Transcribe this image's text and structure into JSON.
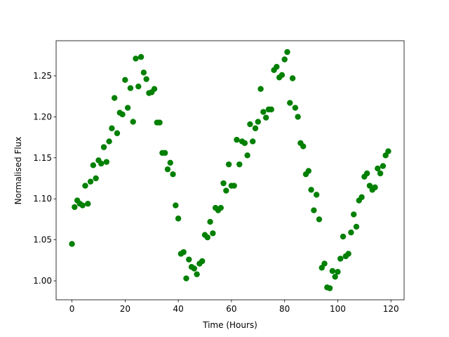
{
  "chart_data": {
    "type": "scatter",
    "color": "#008000",
    "xlabel": "Time (Hours)",
    "ylabel": "Normalised Flux",
    "xlim": [
      -5.95,
      124.95
    ],
    "ylim": [
      0.9769,
      1.2928
    ],
    "xticks": [
      0,
      20,
      40,
      60,
      80,
      100,
      120
    ],
    "yticks": [
      {
        "value": 1,
        "label": "1.00"
      },
      1.05,
      {
        "value": 1.1,
        "label": "1.10"
      },
      1.15,
      {
        "value": 1.2,
        "label": "1.20"
      },
      1.25
    ],
    "x": [
      0,
      1,
      2,
      3,
      4,
      5,
      6,
      7,
      8,
      9,
      10,
      11,
      12,
      13,
      14,
      15,
      16,
      17,
      18,
      19,
      20,
      21,
      22,
      23,
      24,
      25,
      26,
      27,
      28,
      29,
      30,
      31,
      32,
      33,
      34,
      35,
      36,
      37,
      38,
      39,
      40,
      41,
      42,
      43,
      44,
      45,
      46,
      47,
      48,
      49,
      50,
      51,
      52,
      53,
      54,
      55,
      56,
      57,
      58,
      59,
      60,
      61,
      62,
      63,
      64,
      65,
      66,
      67,
      68,
      69,
      70,
      71,
      72,
      73,
      74,
      75,
      76,
      77,
      78,
      79,
      80,
      81,
      82,
      83,
      84,
      85,
      86,
      87,
      88,
      89,
      90,
      91,
      92,
      93,
      94,
      95,
      96,
      97,
      98,
      99,
      100,
      101,
      102,
      103,
      104,
      105,
      106,
      107,
      108,
      109,
      110,
      111,
      112,
      113,
      114,
      115,
      116,
      117,
      118,
      119
    ],
    "y": [
      1.045,
      1.09,
      1.098,
      1.094,
      1.092,
      1.116,
      1.094,
      1.121,
      1.141,
      1.125,
      1.147,
      1.143,
      1.163,
      1.145,
      1.17,
      1.186,
      1.223,
      1.18,
      1.205,
      1.203,
      1.245,
      1.211,
      1.235,
      1.194,
      1.271,
      1.237,
      1.273,
      1.254,
      1.246,
      1.229,
      1.23,
      1.234,
      1.193,
      1.193,
      1.156,
      1.156,
      1.136,
      1.144,
      1.13,
      1.092,
      1.076,
      1.033,
      1.035,
      1.003,
      1.026,
      1.017,
      1.015,
      1.008,
      1.021,
      1.024,
      1.056,
      1.053,
      1.072,
      1.058,
      1.089,
      1.086,
      1.089,
      1.119,
      1.11,
      1.142,
      1.116,
      1.116,
      1.172,
      1.142,
      1.17,
      1.168,
      1.153,
      1.191,
      1.17,
      1.186,
      1.194,
      1.234,
      1.206,
      1.199,
      1.209,
      1.209,
      1.257,
      1.261,
      1.248,
      1.251,
      1.27,
      1.279,
      1.217,
      1.247,
      1.211,
      1.2,
      1.168,
      1.164,
      1.13,
      1.134,
      1.111,
      1.086,
      1.105,
      1.075,
      1.016,
      1.021,
      0.992,
      0.991,
      1.012,
      1.005,
      1.011,
      1.027,
      1.054,
      1.03,
      1.033,
      1.059,
      1.081,
      1.066,
      1.098,
      1.102,
      1.127,
      1.131,
      1.116,
      1.111,
      1.114,
      1.137,
      1.131,
      1.14,
      1.153,
      1.158
    ]
  }
}
